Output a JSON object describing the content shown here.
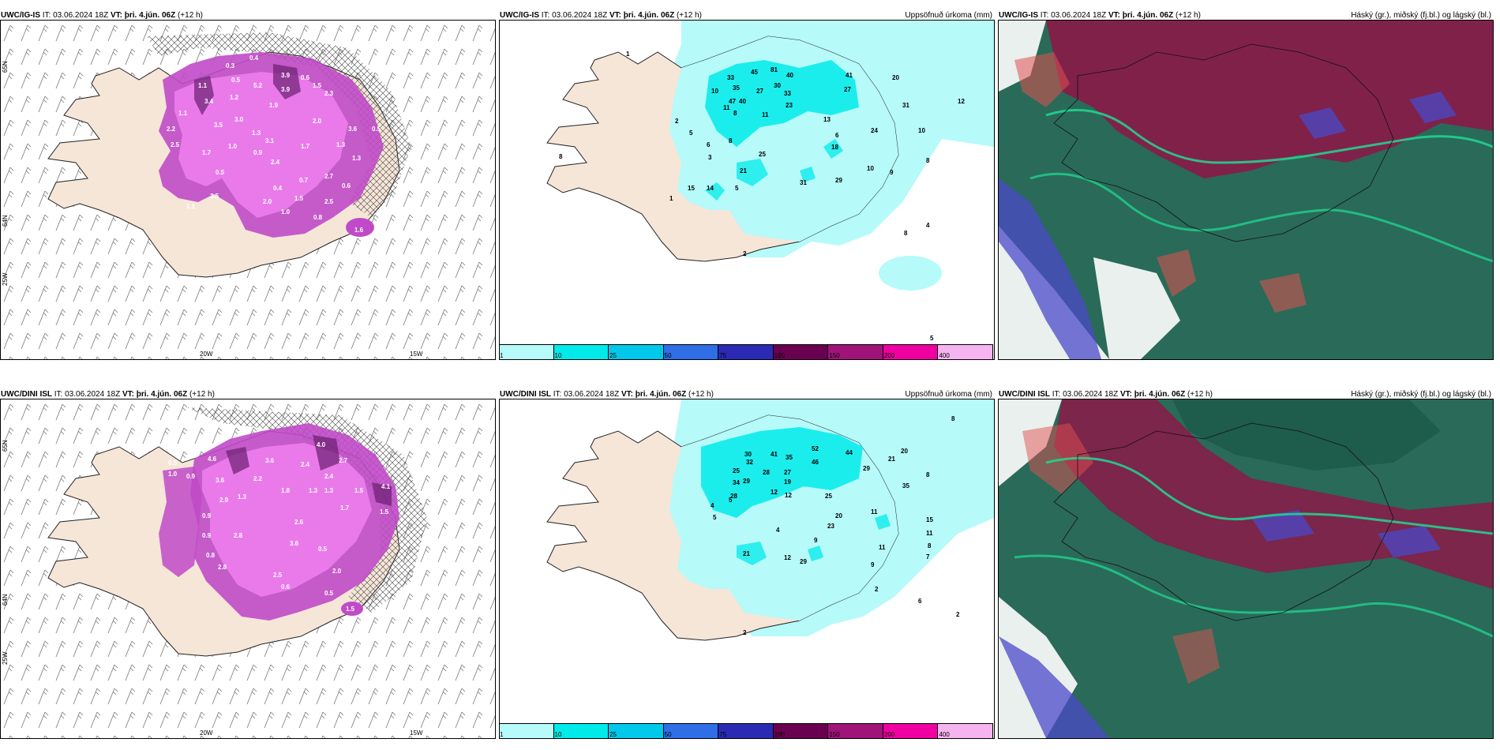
{
  "rows": [
    {
      "model": "UWC/IG-IS",
      "panels": [
        {
          "header_model": "UWC/IG-IS",
          "header_rest_it": " IT: 03.06.2024 18Z ",
          "header_vt_label": "VT: þri. 4.jún. 06Z",
          "header_lead": " (+12 h)",
          "title_right": "",
          "axis_labels": [
            "65N",
            "64N",
            "25W",
            "20W",
            "15W"
          ],
          "values": [
            "0.2",
            "0.3",
            "0.4",
            "0.5",
            "1.1",
            "0.6",
            "1.5",
            "5.2",
            "3.9",
            "3.9",
            "1.2",
            "3.4",
            "3.1",
            "1.9",
            "2.3",
            "1.1",
            "3.5",
            "2.0",
            "2.2",
            "2.5",
            "3.6",
            "3.0",
            "1.0",
            "1.7",
            "1.3",
            "1.7",
            "2.4",
            "0.9",
            "1.3",
            "2.7",
            "0.4",
            "0.5",
            "0.7",
            "0.6",
            "3.5",
            "2.0",
            "1.5",
            "2.5",
            "1.3",
            "1.0",
            "1.6",
            "1.1",
            "0.8",
            "0.5"
          ]
        },
        {
          "header_model": "UWC/IG-IS",
          "header_rest_it": " IT: 03.06.2024 18Z ",
          "header_vt_label": "VT: þri. 4.jún. 06Z",
          "header_lead": " (+12 h)",
          "title_right": "Uppsöfnuð úrkoma (mm)",
          "values": [
            "1",
            "45",
            "81",
            "33",
            "40",
            "10",
            "35",
            "27",
            "30",
            "33",
            "47",
            "40",
            "23",
            "11",
            "8",
            "11",
            "27",
            "41",
            "20",
            "31",
            "2",
            "5",
            "6",
            "8",
            "13",
            "24",
            "10",
            "12",
            "6",
            "18",
            "25",
            "3",
            "21",
            "5",
            "10",
            "8",
            "31",
            "29",
            "9",
            "1",
            "8",
            "4",
            "2",
            "5",
            "8",
            "14",
            "15"
          ]
        },
        {
          "header_model": "UWC/IG-IS",
          "header_rest_it": " IT: 03.06.2024 18Z ",
          "header_vt_label": "VT: þri. 4.jún. 06Z",
          "header_lead": " (+12 h)",
          "title_right": "Háský (gr.), miðský (fj.bl.) og lágský (bl.)"
        }
      ]
    },
    {
      "model": "UWC/DINI ISL",
      "panels": [
        {
          "header_model": "UWC/DINI ISL",
          "header_rest_it": " IT: 03.06.2024 18Z ",
          "header_vt_label": "VT: þri. 4.jún. 06Z",
          "header_lead": " (+12 h)",
          "title_right": "",
          "axis_labels": [
            "65N",
            "64N",
            "25W",
            "20W",
            "15W"
          ],
          "values": [
            "0.5",
            "1.0",
            "0.9",
            "4.6",
            "3.6",
            "4.0",
            "2.4",
            "2.7",
            "2.4",
            "3.6",
            "2.2",
            "1.3",
            "2.9",
            "1.5",
            "4.1",
            "0.9",
            "1.3",
            "2.8",
            "1.8",
            "1.3",
            "1.7",
            "1.5",
            "2.6",
            "3.6",
            "0.9",
            "0.5",
            "0.8",
            "2.8",
            "2.5",
            "2.0",
            "0.6",
            "0.5",
            "1.5"
          ]
        },
        {
          "header_model": "UWC/DINI ISL",
          "header_rest_it": " IT: 03.06.2024 18Z ",
          "header_vt_label": "VT: þri. 4.jún. 06Z",
          "header_lead": " (+12 h)",
          "title_right": "Uppsöfnuð úrkoma (mm)",
          "values": [
            "8",
            "30",
            "41",
            "35",
            "52",
            "44",
            "20",
            "32",
            "28",
            "46",
            "29",
            "21",
            "25",
            "27",
            "35",
            "34",
            "29",
            "12",
            "12",
            "25",
            "8",
            "28",
            "19",
            "20",
            "11",
            "4",
            "5",
            "4",
            "15",
            "23",
            "11",
            "21",
            "9",
            "8",
            "7",
            "12",
            "29",
            "11",
            "9",
            "5",
            "2",
            "6",
            "2",
            "2"
          ]
        },
        {
          "header_model": "UWC/DINI ISL",
          "header_rest_it": " IT: 03.06.2024 18Z ",
          "header_vt_label": "VT: þri. 4.jún. 06Z",
          "header_lead": " (+12 h)",
          "title_right": "Háský (gr.), miðský (fj.bl.) og lágský (bl.)"
        }
      ]
    }
  ],
  "legend": {
    "labels": [
      "1",
      "10",
      "25",
      "50",
      "75",
      "100",
      "150",
      "200",
      "400"
    ],
    "colors": [
      "#b6fafa",
      "#00eaea",
      "#00c8ea",
      "#2f6ee6",
      "#2a2ab4",
      "#6a0050",
      "#a0147a",
      "#f000a0",
      "#f5b4f0"
    ]
  },
  "colors": {
    "land": "#f6e6d8",
    "precip_light": "#b6fafa",
    "precip_mid": "#00eaea",
    "purple_light": "#f080f0",
    "purple_mid": "#c04ac8",
    "purple_dark": "#6a2070",
    "cloud_high": "#2a6a58",
    "cloud_mid": "#8a1a48",
    "cloud_low": "#4a4ac8",
    "cloud_edge": "#20d890"
  }
}
